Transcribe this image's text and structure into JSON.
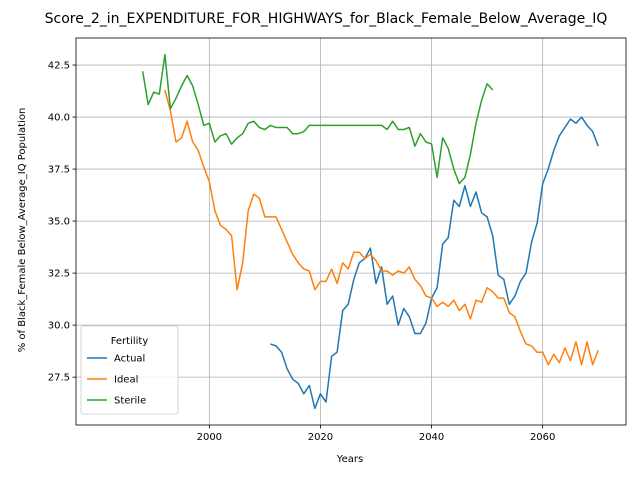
{
  "chart_data": {
    "type": "line",
    "title": "Score_2_in_EXPENDITURE_FOR_HIGHWAYS_for_Black_Female_Below_Average_IQ",
    "xlabel": "Years",
    "ylabel": "% of Black_Female Below_Average_IQ Population",
    "xlim": [
      1976,
      2075
    ],
    "ylim": [
      25.2,
      43.8
    ],
    "xticks": [
      2000,
      2020,
      2040,
      2060
    ],
    "yticks": [
      27.5,
      30.0,
      32.5,
      35.0,
      37.5,
      40.0,
      42.5
    ],
    "xtick_labels": [
      "2000",
      "2020",
      "2040",
      "2060"
    ],
    "ytick_labels": [
      "27.5",
      "30.0",
      "32.5",
      "35.0",
      "37.5",
      "40.0",
      "42.5"
    ],
    "grid": true,
    "legend": {
      "title": "Fertility",
      "placement": "lower-left"
    },
    "series": [
      {
        "name": "Actual",
        "color": "#1f77b4",
        "x": [
          2011,
          2012,
          2013,
          2014,
          2015,
          2016,
          2017,
          2018,
          2019,
          2020,
          2021,
          2022,
          2023,
          2024,
          2025,
          2026,
          2027,
          2028,
          2029,
          2030,
          2031,
          2032,
          2033,
          2034,
          2035,
          2036,
          2037,
          2038,
          2039,
          2040,
          2041,
          2042,
          2043,
          2044,
          2045,
          2046,
          2047,
          2048,
          2049,
          2050,
          2051,
          2052,
          2053,
          2054,
          2055,
          2056,
          2057,
          2058,
          2059,
          2060,
          2061,
          2062,
          2063,
          2064,
          2065,
          2066,
          2067,
          2068,
          2069,
          2070
        ],
        "y": [
          29.1,
          29.0,
          28.7,
          27.9,
          27.4,
          27.2,
          26.7,
          27.1,
          26.0,
          26.7,
          26.3,
          28.5,
          28.7,
          30.7,
          31.0,
          32.2,
          33.0,
          33.2,
          33.7,
          32.0,
          32.8,
          31.0,
          31.4,
          30.0,
          30.8,
          30.4,
          29.6,
          29.6,
          30.1,
          31.3,
          31.8,
          33.9,
          34.2,
          36.0,
          35.7,
          36.7,
          35.7,
          36.4,
          35.4,
          35.2,
          34.3,
          32.4,
          32.2,
          31.0,
          31.4,
          32.1,
          32.5,
          34.0,
          34.9,
          36.8,
          37.5,
          38.4,
          39.1,
          39.5,
          39.9,
          39.7,
          40.0,
          39.6,
          39.3,
          38.6
        ]
      },
      {
        "name": "Ideal",
        "color": "#ff7f0e",
        "x": [
          1992,
          1993,
          1994,
          1995,
          1996,
          1997,
          1998,
          1999,
          2000,
          2001,
          2002,
          2003,
          2004,
          2005,
          2006,
          2007,
          2008,
          2009,
          2010,
          2011,
          2012,
          2013,
          2014,
          2015,
          2016,
          2017,
          2018,
          2019,
          2020,
          2021,
          2022,
          2023,
          2024,
          2025,
          2026,
          2027,
          2028,
          2029,
          2030,
          2031,
          2032,
          2033,
          2034,
          2035,
          2036,
          2037,
          2038,
          2039,
          2040,
          2041,
          2042,
          2043,
          2044,
          2045,
          2046,
          2047,
          2048,
          2049,
          2050,
          2051,
          2052,
          2053,
          2054,
          2055,
          2056,
          2057,
          2058,
          2059,
          2060,
          2061,
          2062,
          2063,
          2064,
          2065,
          2066,
          2067,
          2068,
          2069,
          2070
        ],
        "y": [
          41.3,
          40.3,
          38.8,
          39.0,
          39.8,
          38.8,
          38.4,
          37.6,
          36.9,
          35.5,
          34.8,
          34.6,
          34.3,
          31.7,
          33.0,
          35.5,
          36.3,
          36.1,
          35.2,
          35.2,
          35.2,
          34.6,
          34.0,
          33.4,
          33.0,
          32.7,
          32.6,
          31.7,
          32.1,
          32.1,
          32.7,
          32.0,
          33.0,
          32.7,
          33.5,
          33.5,
          33.2,
          33.4,
          33.1,
          32.6,
          32.6,
          32.4,
          32.6,
          32.5,
          32.8,
          32.2,
          31.9,
          31.4,
          31.3,
          30.9,
          31.1,
          30.9,
          31.2,
          30.7,
          31.0,
          30.3,
          31.2,
          31.1,
          31.8,
          31.6,
          31.3,
          31.3,
          30.6,
          30.4,
          29.7,
          29.1,
          29.0,
          28.7,
          28.7,
          28.1,
          28.6,
          28.2,
          28.9,
          28.3,
          29.2,
          28.1,
          29.2,
          28.1,
          28.8
        ]
      },
      {
        "name": "Sterile",
        "color": "#2ca02c",
        "x": [
          1988,
          1989,
          1990,
          1991,
          1992,
          1993,
          1994,
          1995,
          1996,
          1997,
          1998,
          1999,
          2000,
          2001,
          2002,
          2003,
          2004,
          2005,
          2006,
          2007,
          2008,
          2009,
          2010,
          2011,
          2012,
          2013,
          2014,
          2015,
          2016,
          2017,
          2018,
          2019,
          2020,
          2021,
          2022,
          2023,
          2024,
          2025,
          2026,
          2027,
          2028,
          2029,
          2030,
          2031,
          2032,
          2033,
          2034,
          2035,
          2036,
          2037,
          2038,
          2039,
          2040,
          2041,
          2042,
          2043,
          2044,
          2045,
          2046,
          2047,
          2048,
          2049,
          2050,
          2051
        ],
        "y": [
          42.2,
          40.6,
          41.2,
          41.1,
          43.0,
          40.4,
          40.9,
          41.5,
          42.0,
          41.5,
          40.6,
          39.6,
          39.7,
          38.8,
          39.1,
          39.2,
          38.7,
          39.0,
          39.2,
          39.7,
          39.8,
          39.5,
          39.4,
          39.6,
          39.5,
          39.5,
          39.5,
          39.2,
          39.2,
          39.3,
          39.6,
          39.6,
          39.6,
          39.6,
          39.6,
          39.6,
          39.6,
          39.6,
          39.6,
          39.6,
          39.6,
          39.6,
          39.6,
          39.6,
          39.4,
          39.8,
          39.4,
          39.4,
          39.5,
          38.6,
          39.2,
          38.8,
          38.7,
          37.1,
          39.0,
          38.5,
          37.5,
          36.8,
          37.1,
          38.2,
          39.7,
          40.8,
          41.6,
          41.3
        ]
      }
    ]
  }
}
